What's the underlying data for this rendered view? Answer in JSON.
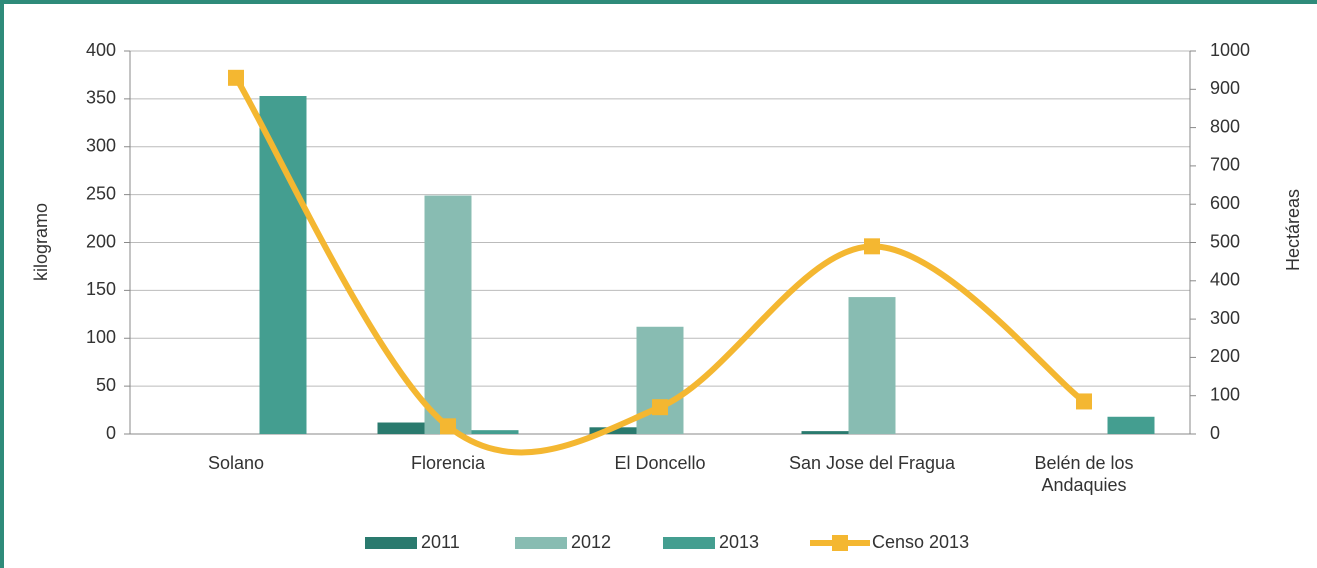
{
  "chart_data": {
    "type": "bar",
    "categories": [
      "Solano",
      "Florencia",
      "El Doncello",
      "San Jose del Fragua",
      "Belén de los Andaquies"
    ],
    "series": [
      {
        "name": "2011",
        "color": "#2a7a6e",
        "values": [
          0,
          12,
          7,
          3,
          0
        ]
      },
      {
        "name": "2012",
        "color": "#88bcb2",
        "values": [
          0,
          249,
          112,
          143,
          0
        ]
      },
      {
        "name": "2013",
        "color": "#449e90",
        "values": [
          353,
          4,
          0,
          0,
          18
        ]
      },
      {
        "name": "Censo 2013",
        "color": "#f4b731",
        "type": "line",
        "axis": "y2",
        "smooth": true,
        "values": [
          930,
          20,
          70,
          490,
          85
        ]
      }
    ],
    "ylabel": "kilogramo",
    "y2label": "Hectáreas",
    "ylim": [
      0,
      400
    ],
    "yticks": [
      0,
      50,
      100,
      150,
      200,
      250,
      300,
      350,
      400
    ],
    "y2lim": [
      0,
      1000
    ],
    "y2ticks": [
      0,
      100,
      200,
      300,
      400,
      500,
      600,
      700,
      800,
      900,
      1000
    ],
    "grid": true,
    "legend": "bottom"
  }
}
